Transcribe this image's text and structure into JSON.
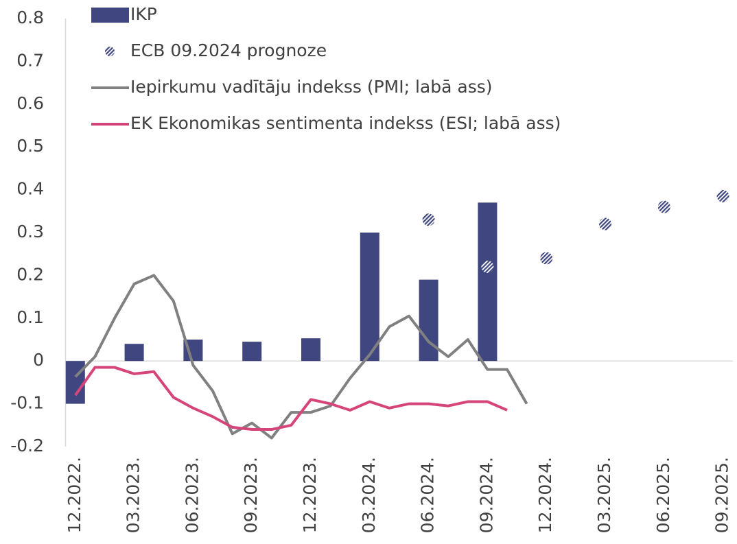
{
  "chart_data": {
    "type": "combo",
    "categories": [
      "12.2022.",
      null,
      null,
      "03.2023.",
      null,
      null,
      "06.2023.",
      null,
      null,
      "09.2023.",
      null,
      null,
      "12.2023.",
      null,
      null,
      "03.2024.",
      null,
      null,
      "06.2024.",
      null,
      null,
      "09.2024.",
      null,
      null,
      "12.2024.",
      null,
      null,
      "03.2025.",
      null,
      null,
      "06.2025.",
      null,
      null,
      "09.2025."
    ],
    "ylim": [
      -0.2,
      0.8
    ],
    "yticks": [
      -0.2,
      -0.1,
      0,
      0.1,
      0.2,
      0.3,
      0.4,
      0.5,
      0.6,
      0.7,
      0.8
    ],
    "series": [
      {
        "name": "IKP",
        "type": "bar",
        "color": "#3f4680",
        "values": [
          -0.1,
          null,
          null,
          0.04,
          null,
          null,
          0.05,
          null,
          null,
          0.045,
          null,
          null,
          0.053,
          null,
          null,
          0.3,
          null,
          null,
          0.19,
          null,
          null,
          0.37,
          null,
          null,
          null,
          null,
          null,
          null,
          null,
          null,
          null,
          null,
          null,
          null
        ]
      },
      {
        "name": "ECB 09.2024 prognoze",
        "type": "scatter",
        "color": "#3f4680",
        "values": [
          null,
          null,
          null,
          null,
          null,
          null,
          null,
          null,
          null,
          null,
          null,
          null,
          null,
          null,
          null,
          null,
          null,
          null,
          0.33,
          null,
          null,
          0.22,
          null,
          null,
          0.24,
          null,
          null,
          0.32,
          null,
          null,
          0.36,
          null,
          null,
          0.385
        ]
      },
      {
        "name": "Iepirkumu vadītāju indekss (PMI; labā ass)",
        "type": "line",
        "color": "#808080",
        "values": [
          -0.037,
          0.01,
          0.1,
          0.18,
          0.2,
          0.14,
          -0.01,
          -0.07,
          -0.17,
          -0.145,
          -0.18,
          -0.12,
          -0.12,
          -0.105,
          -0.04,
          0.015,
          0.08,
          0.105,
          0.045,
          0.01,
          0.05,
          -0.02,
          -0.02,
          -0.1,
          null,
          null,
          null,
          null,
          null,
          null,
          null,
          null,
          null,
          null
        ]
      },
      {
        "name": "EK Ekonomikas sentimenta indekss (ESI; labā ass)",
        "type": "line",
        "color": "#d6457a",
        "values": [
          -0.08,
          -0.015,
          -0.015,
          -0.03,
          -0.025,
          -0.085,
          -0.11,
          -0.13,
          -0.155,
          -0.16,
          -0.16,
          -0.15,
          -0.09,
          -0.1,
          -0.115,
          -0.095,
          -0.11,
          -0.1,
          -0.1,
          -0.105,
          -0.095,
          -0.095,
          -0.115,
          null,
          null,
          null,
          null,
          null,
          null,
          null,
          null,
          null,
          null,
          null
        ]
      }
    ]
  }
}
